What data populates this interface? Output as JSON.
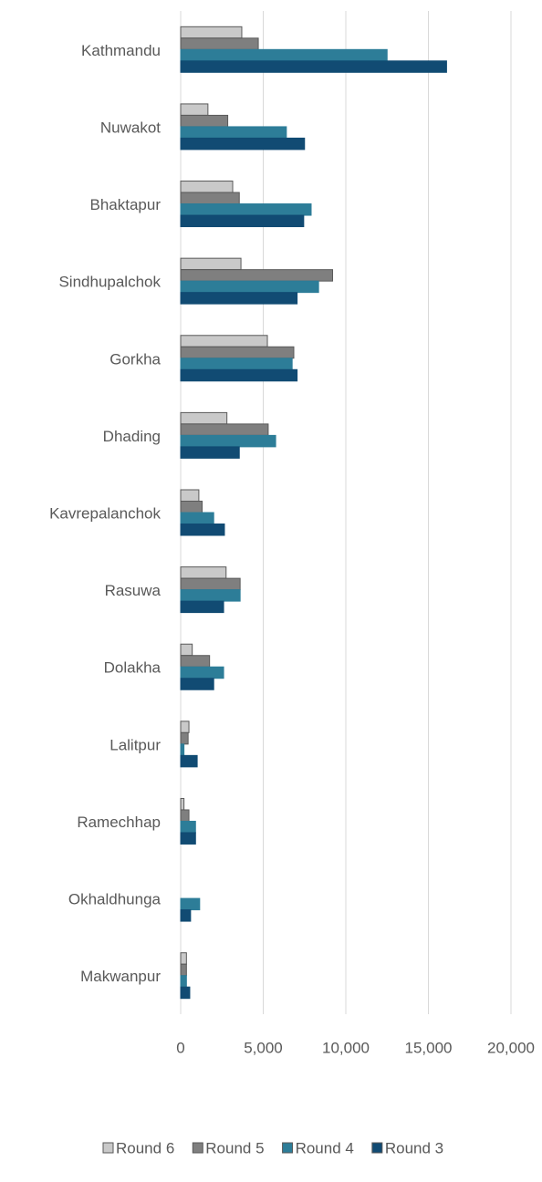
{
  "chart_data": {
    "type": "bar",
    "orientation": "horizontal",
    "categories": [
      "Kathmandu",
      "Nuwakot",
      "Bhaktapur",
      "Sindhupalchok",
      "Gorkha",
      "Dhading",
      "Kavrepalanchok",
      "Rasuwa",
      "Dolakha",
      "Lalitpur",
      "Ramechhap",
      "Okhaldhunga",
      "Makwanpur"
    ],
    "series": [
      {
        "name": "Round 6",
        "color": "#c9c9c9",
        "values": [
          3700,
          1650,
          3150,
          3650,
          5250,
          2800,
          1100,
          2750,
          700,
          500,
          200,
          0,
          350
        ]
      },
      {
        "name": "Round 5",
        "color": "#7f7f7f",
        "values": [
          4700,
          2850,
          3550,
          9200,
          6850,
          5300,
          1300,
          3600,
          1750,
          450,
          500,
          0,
          350
        ]
      },
      {
        "name": "Round 4",
        "color": "#2d7d98",
        "values": [
          12500,
          6400,
          7900,
          8350,
          6750,
          5750,
          2000,
          3600,
          2600,
          200,
          900,
          1150,
          350
        ]
      },
      {
        "name": "Round 3",
        "color": "#114b73",
        "values": [
          16100,
          7500,
          7450,
          7050,
          7050,
          3550,
          2650,
          2600,
          2000,
          1000,
          900,
          600,
          550
        ]
      }
    ],
    "xlim": [
      0,
      20000
    ],
    "xticks": [
      0,
      {
        "value": 5000,
        "label": "5,000"
      },
      {
        "value": 10000,
        "label": "10,000"
      },
      {
        "value": 15000,
        "label": "15,000"
      },
      {
        "value": 20000,
        "label": "20,000"
      }
    ],
    "grid": true,
    "legend": "bottom"
  }
}
